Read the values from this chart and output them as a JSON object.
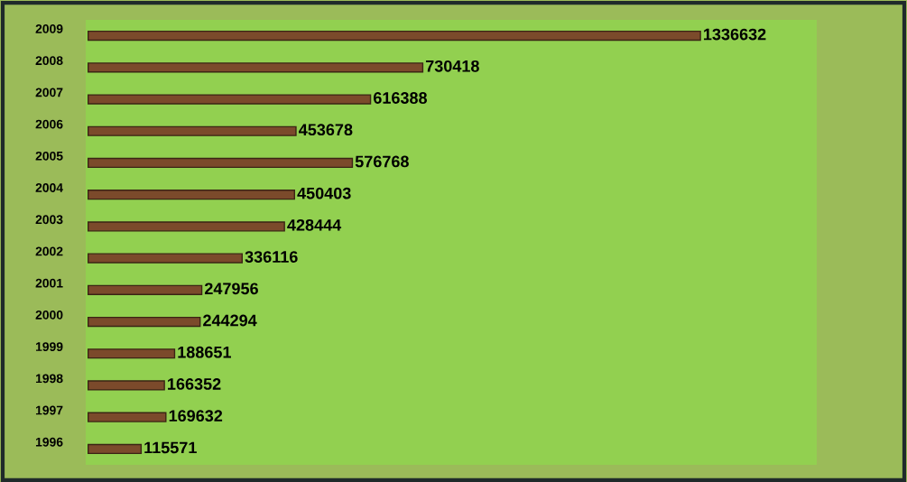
{
  "chart_data": {
    "type": "bar",
    "orientation": "horizontal",
    "categories": [
      "2009",
      "2008",
      "2007",
      "2006",
      "2005",
      "2004",
      "2003",
      "2002",
      "2001",
      "2000",
      "1999",
      "1998",
      "1997",
      "1996"
    ],
    "values": [
      1336632,
      730418,
      616388,
      453678,
      576768,
      450403,
      428444,
      336116,
      247956,
      244294,
      188651,
      166352,
      169632,
      115571
    ],
    "color": "#7b4a2b",
    "data_labels": true,
    "grid": false,
    "legend": false
  }
}
